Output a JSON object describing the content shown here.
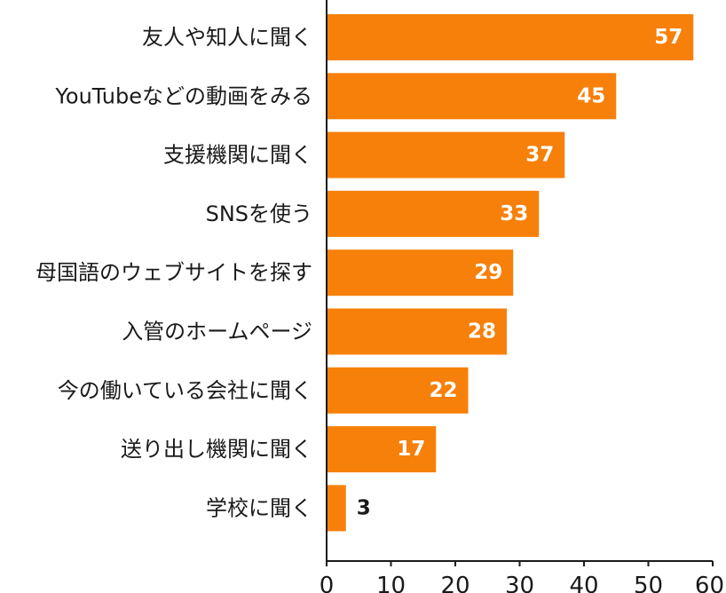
{
  "chart_data": {
    "type": "bar",
    "orientation": "horizontal",
    "categories": [
      "友人や知人に聞く",
      "YouTubeなどの動画をみる",
      "支援機関に聞く",
      "SNSを使う",
      "母国語のウェブサイトを探す",
      "入管のホームページ",
      "今の働いている会社に聞く",
      "送り出し機関に聞く",
      "学校に聞く"
    ],
    "values": [
      57,
      45,
      37,
      33,
      29,
      28,
      22,
      17,
      3
    ],
    "xlim": [
      0,
      60
    ],
    "xticks": [
      0,
      10,
      20,
      30,
      40,
      50,
      60
    ],
    "title": "",
    "xlabel": "",
    "ylabel": "",
    "grid": false,
    "legend": "none",
    "colors": {
      "bar": "#f7800a",
      "value_label_inside": "#ffffff",
      "value_label_outside": "#1a1a1a",
      "axis": "#1a1a1a"
    }
  }
}
